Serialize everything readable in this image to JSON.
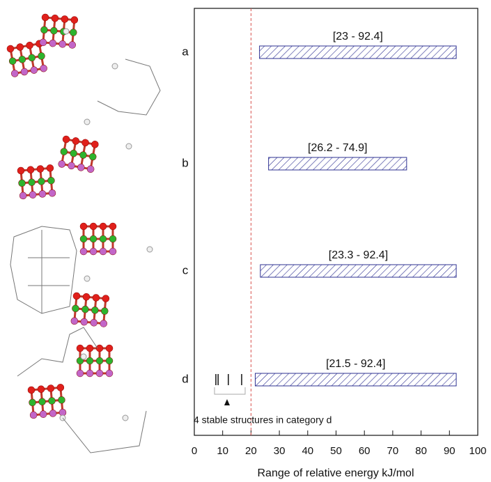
{
  "chart_data": {
    "type": "floating-bar",
    "categories": [
      "a",
      "b",
      "c",
      "d"
    ],
    "low": [
      23,
      26.2,
      23.3,
      21.5
    ],
    "high": [
      92.4,
      74.9,
      92.4,
      92.4
    ],
    "value_labels": [
      "[23 - 92.4]",
      "[26.2 - 74.9]",
      "[23.3 - 92.4]",
      "[21.5 - 92.4]"
    ],
    "color": "#2e3192",
    "hatch": true,
    "xlabel": "Range of relative energy kJ/mol",
    "xlim": [
      0,
      100
    ],
    "xticks": [
      0,
      10,
      20,
      30,
      40,
      50,
      60,
      70,
      80,
      90,
      100
    ],
    "ref_line": 20,
    "ref_line_color": "#d9534f",
    "stable_structures": [
      7.6,
      8.4,
      12,
      16.7
    ],
    "annotation": "4 stable structures in category d"
  }
}
